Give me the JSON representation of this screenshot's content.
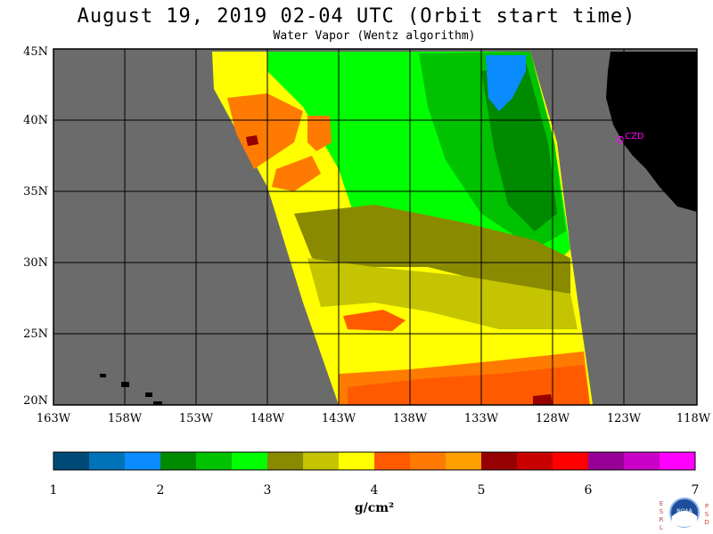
{
  "header": {
    "title": "August 19, 2019  02-04 UTC  (Orbit start time)",
    "subtitle": "Water Vapor (Wentz algorithm)"
  },
  "map": {
    "background_color": "#6b6b6b",
    "land_color": "#000000",
    "grid_color": "#000000",
    "lat_labels": [
      "45N",
      "40N",
      "35N",
      "30N",
      "25N",
      "20N"
    ],
    "lon_labels": [
      "163W",
      "158W",
      "153W",
      "148W",
      "143W",
      "138W",
      "133W",
      "128W",
      "123W",
      "118W"
    ],
    "station_label": "CZD",
    "station_color": "#ff00ff"
  },
  "colorbar": {
    "colors": [
      "#004a77",
      "#0073b8",
      "#0a8cff",
      "#008a00",
      "#00c200",
      "#00ff00",
      "#8a8a00",
      "#c4c400",
      "#ffff00",
      "#ff5a00",
      "#ff7a00",
      "#ffa000",
      "#960000",
      "#c80000",
      "#ff0000",
      "#960096",
      "#c800c8",
      "#ff00ff"
    ],
    "tick_labels": [
      "1",
      "2",
      "3",
      "4",
      "5",
      "6",
      "7"
    ],
    "units": "g/cm²"
  },
  "logo": {
    "left_letters": [
      "E",
      "S",
      "R",
      "L"
    ],
    "right_letters": [
      "P",
      "S",
      "D"
    ],
    "badge_text": "NOAA"
  }
}
